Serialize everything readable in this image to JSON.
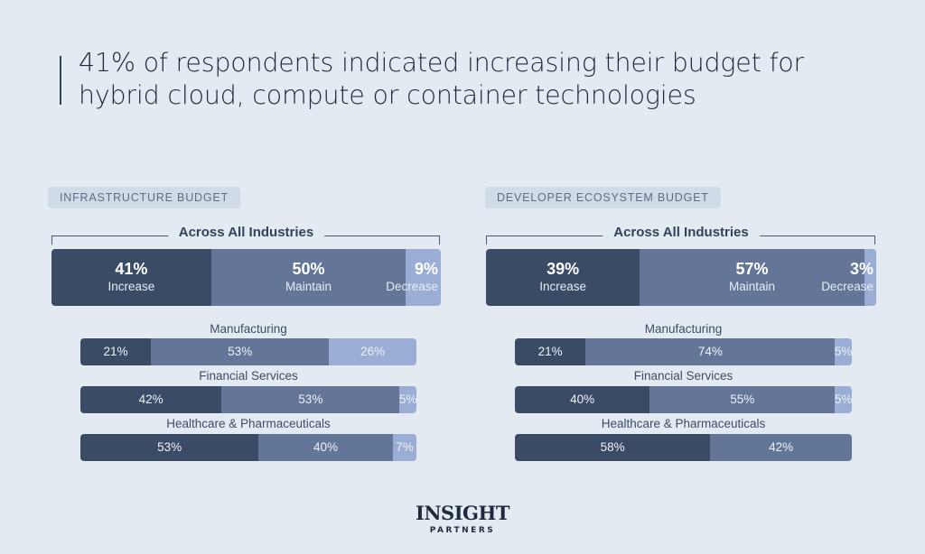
{
  "title": "41% of respondents indicated increasing their budget for hybrid cloud, compute or container technologies",
  "logo": {
    "line1": "INSIGHT",
    "line2": "PARTNERS"
  },
  "colors": {
    "increase": "#3a4b66",
    "maintain": "#637698",
    "decrease": "#9aaed5",
    "background": "#e3eaf1"
  },
  "chart_data": [
    {
      "type": "bar",
      "stacked": true,
      "orientation": "horizontal",
      "title": "INFRASTRUCTURE BUDGET",
      "overall": {
        "label": "Across All Industries",
        "series": [
          "Increase",
          "Maintain",
          "Decrease"
        ],
        "values": [
          41,
          50,
          9
        ]
      },
      "categories": [
        "Manufacturing",
        "Financial Services",
        "Healthcare & Pharmaceuticals"
      ],
      "series": [
        {
          "name": "Increase",
          "values": [
            21,
            42,
            53
          ]
        },
        {
          "name": "Maintain",
          "values": [
            53,
            53,
            40
          ]
        },
        {
          "name": "Decrease",
          "values": [
            26,
            5,
            7
          ]
        }
      ]
    },
    {
      "type": "bar",
      "stacked": true,
      "orientation": "horizontal",
      "title": "DEVELOPER ECOSYSTEM BUDGET",
      "overall": {
        "label": "Across All Industries",
        "series": [
          "Increase",
          "Maintain",
          "Decrease"
        ],
        "values": [
          39,
          57,
          3
        ]
      },
      "categories": [
        "Manufacturing",
        "Financial Services",
        "Healthcare & Pharmaceuticals"
      ],
      "series": [
        {
          "name": "Increase",
          "values": [
            21,
            40,
            58
          ]
        },
        {
          "name": "Maintain",
          "values": [
            74,
            55,
            42
          ]
        },
        {
          "name": "Decrease",
          "values": [
            5,
            5,
            0
          ]
        }
      ]
    }
  ]
}
